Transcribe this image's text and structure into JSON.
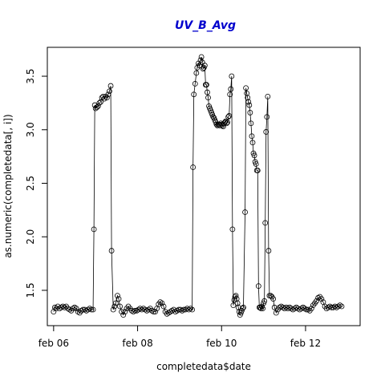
{
  "chart_data": {
    "type": "scatter",
    "title": "UV_B_Avg",
    "xlabel": "completedata$date",
    "ylabel": "as.numeric(completedata[, i])",
    "xlim": [
      5.85,
      13.3
    ],
    "ylim": [
      1.17,
      3.77
    ],
    "x_ticks": [
      {
        "value": 6,
        "label": "feb 06"
      },
      {
        "value": 8,
        "label": "feb 08"
      },
      {
        "value": 10,
        "label": "feb 10"
      },
      {
        "value": 12,
        "label": "feb 12"
      }
    ],
    "y_ticks": [
      {
        "value": 1.5,
        "label": "1.5"
      },
      {
        "value": 2.0,
        "label": "2.0"
      },
      {
        "value": 2.5,
        "label": "2.5"
      },
      {
        "value": 3.0,
        "label": "3.0"
      },
      {
        "value": 3.5,
        "label": "3.5"
      }
    ],
    "grid": false,
    "marker": "open-circle",
    "series": [
      {
        "line": true,
        "points": [
          [
            6.0,
            1.3
          ],
          [
            6.03,
            1.34
          ],
          [
            6.06,
            1.33
          ],
          [
            6.1,
            1.35
          ],
          [
            6.14,
            1.33
          ],
          [
            6.18,
            1.34
          ],
          [
            6.22,
            1.35
          ],
          [
            6.26,
            1.34
          ],
          [
            6.3,
            1.35
          ],
          [
            6.34,
            1.33
          ],
          [
            6.38,
            1.32
          ],
          [
            6.42,
            1.31
          ],
          [
            6.46,
            1.33
          ],
          [
            6.5,
            1.34
          ],
          [
            6.54,
            1.33
          ],
          [
            6.58,
            1.3
          ],
          [
            6.62,
            1.29
          ],
          [
            6.66,
            1.31
          ],
          [
            6.7,
            1.32
          ],
          [
            6.74,
            1.32
          ],
          [
            6.78,
            1.31
          ],
          [
            6.82,
            1.32
          ],
          [
            6.86,
            1.33
          ],
          [
            6.9,
            1.32
          ],
          [
            6.94,
            1.32
          ],
          [
            6.96,
            2.07
          ],
          [
            6.98,
            3.23
          ],
          [
            7.0,
            3.2
          ],
          [
            7.03,
            3.21
          ],
          [
            7.06,
            3.22
          ],
          [
            7.09,
            3.25
          ],
          [
            7.12,
            3.26
          ],
          [
            7.15,
            3.3
          ],
          [
            7.18,
            3.31
          ],
          [
            7.21,
            3.29
          ],
          [
            7.24,
            3.31
          ],
          [
            7.27,
            3.3
          ],
          [
            7.3,
            3.33
          ],
          [
            7.33,
            3.36
          ],
          [
            7.36,
            3.41
          ],
          [
            7.38,
            1.87
          ],
          [
            7.42,
            1.32
          ],
          [
            7.45,
            1.35
          ],
          [
            7.48,
            1.38
          ],
          [
            7.52,
            1.45
          ],
          [
            7.55,
            1.42
          ],
          [
            7.58,
            1.35
          ],
          [
            7.62,
            1.3
          ],
          [
            7.66,
            1.27
          ],
          [
            7.7,
            1.3
          ],
          [
            7.74,
            1.33
          ],
          [
            7.78,
            1.35
          ],
          [
            7.82,
            1.33
          ],
          [
            7.86,
            1.31
          ],
          [
            7.9,
            1.3
          ],
          [
            7.94,
            1.31
          ],
          [
            7.98,
            1.31
          ],
          [
            8.02,
            1.32
          ],
          [
            8.06,
            1.33
          ],
          [
            8.1,
            1.32
          ],
          [
            8.14,
            1.33
          ],
          [
            8.18,
            1.32
          ],
          [
            8.22,
            1.31
          ],
          [
            8.26,
            1.32
          ],
          [
            8.3,
            1.33
          ],
          [
            8.34,
            1.31
          ],
          [
            8.38,
            1.3
          ],
          [
            8.42,
            1.3
          ],
          [
            8.46,
            1.33
          ],
          [
            8.5,
            1.37
          ],
          [
            8.54,
            1.39
          ],
          [
            8.58,
            1.38
          ],
          [
            8.62,
            1.35
          ],
          [
            8.66,
            1.3
          ],
          [
            8.7,
            1.28
          ],
          [
            8.74,
            1.29
          ],
          [
            8.78,
            1.3
          ],
          [
            8.82,
            1.31
          ],
          [
            8.86,
            1.32
          ],
          [
            8.9,
            1.3
          ],
          [
            8.94,
            1.31
          ],
          [
            8.98,
            1.32
          ],
          [
            9.02,
            1.32
          ],
          [
            9.06,
            1.31
          ],
          [
            9.1,
            1.32
          ],
          [
            9.14,
            1.32
          ],
          [
            9.18,
            1.33
          ],
          [
            9.22,
            1.32
          ],
          [
            9.26,
            1.33
          ],
          [
            9.3,
            1.32
          ],
          [
            9.32,
            2.65
          ],
          [
            9.34,
            3.33
          ],
          [
            9.37,
            3.43
          ],
          [
            9.4,
            3.53
          ],
          [
            9.42,
            3.58
          ],
          [
            9.45,
            3.62
          ],
          [
            9.47,
            3.6
          ],
          [
            9.5,
            3.65
          ],
          [
            9.52,
            3.68
          ],
          [
            9.54,
            3.63
          ],
          [
            9.56,
            3.57
          ],
          [
            9.58,
            3.58
          ],
          [
            9.6,
            3.6
          ],
          [
            9.62,
            3.42
          ],
          [
            9.64,
            3.42
          ],
          [
            9.66,
            3.35
          ],
          [
            9.68,
            3.3
          ],
          [
            9.7,
            3.22
          ],
          [
            9.72,
            3.2
          ],
          [
            9.74,
            3.18
          ],
          [
            9.76,
            3.16
          ],
          [
            9.78,
            3.14
          ],
          [
            9.8,
            3.12
          ],
          [
            9.82,
            3.11
          ],
          [
            9.84,
            3.09
          ],
          [
            9.86,
            3.07
          ],
          [
            9.88,
            3.05
          ],
          [
            9.9,
            3.04
          ],
          [
            9.92,
            3.05
          ],
          [
            9.94,
            3.05
          ],
          [
            9.96,
            3.04
          ],
          [
            9.98,
            3.06
          ],
          [
            10.0,
            3.05
          ],
          [
            10.02,
            3.04
          ],
          [
            10.04,
            3.03
          ],
          [
            10.06,
            3.06
          ],
          [
            10.08,
            3.07
          ],
          [
            10.1,
            3.08
          ],
          [
            10.12,
            3.06
          ],
          [
            10.14,
            3.07
          ],
          [
            10.16,
            3.12
          ],
          [
            10.18,
            3.13
          ],
          [
            10.2,
            3.33
          ],
          [
            10.22,
            3.38
          ],
          [
            10.24,
            3.5
          ],
          [
            10.26,
            2.07
          ],
          [
            10.28,
            1.36
          ],
          [
            10.3,
            1.41
          ],
          [
            10.32,
            1.44
          ],
          [
            10.34,
            1.45
          ],
          [
            10.36,
            1.42
          ],
          [
            10.38,
            1.38
          ],
          [
            10.4,
            1.34
          ],
          [
            10.42,
            1.3
          ],
          [
            10.44,
            1.27
          ],
          [
            10.46,
            1.29
          ],
          [
            10.48,
            1.31
          ],
          [
            10.5,
            1.33
          ],
          [
            10.52,
            1.34
          ],
          [
            10.56,
            2.23
          ],
          [
            10.58,
            3.39
          ],
          [
            10.6,
            3.34
          ],
          [
            10.62,
            3.3
          ],
          [
            10.64,
            3.26
          ],
          [
            10.66,
            3.23
          ],
          [
            10.68,
            3.16
          ],
          [
            10.7,
            3.06
          ],
          [
            10.72,
            2.94
          ],
          [
            10.74,
            2.88
          ],
          [
            10.76,
            2.78
          ],
          [
            10.78,
            2.76
          ],
          [
            10.8,
            2.7
          ],
          [
            10.82,
            2.68
          ],
          [
            10.84,
            2.62
          ],
          [
            10.86,
            2.62
          ],
          [
            10.88,
            1.54
          ],
          [
            10.9,
            1.34
          ],
          [
            10.92,
            1.34
          ],
          [
            10.94,
            1.33
          ],
          [
            10.96,
            1.35
          ],
          [
            10.98,
            1.33
          ],
          [
            11.0,
            1.38
          ],
          [
            11.02,
            1.4
          ],
          [
            11.04,
            2.13
          ],
          [
            11.06,
            2.98
          ],
          [
            11.08,
            3.12
          ],
          [
            11.1,
            3.31
          ],
          [
            11.12,
            1.87
          ],
          [
            11.14,
            1.45
          ],
          [
            11.17,
            1.45
          ],
          [
            11.2,
            1.44
          ],
          [
            11.23,
            1.42
          ],
          [
            11.26,
            1.34
          ],
          [
            11.3,
            1.29
          ],
          [
            11.34,
            1.32
          ],
          [
            11.38,
            1.34
          ],
          [
            11.42,
            1.35
          ],
          [
            11.46,
            1.34
          ],
          [
            11.5,
            1.33
          ],
          [
            11.54,
            1.34
          ],
          [
            11.58,
            1.33
          ],
          [
            11.62,
            1.34
          ],
          [
            11.66,
            1.33
          ],
          [
            11.7,
            1.32
          ],
          [
            11.74,
            1.33
          ],
          [
            11.78,
            1.34
          ],
          [
            11.82,
            1.33
          ],
          [
            11.86,
            1.32
          ],
          [
            11.9,
            1.33
          ],
          [
            11.94,
            1.34
          ],
          [
            11.98,
            1.33
          ],
          [
            12.02,
            1.32
          ],
          [
            12.06,
            1.32
          ],
          [
            12.1,
            1.31
          ],
          [
            12.14,
            1.33
          ],
          [
            12.18,
            1.36
          ],
          [
            12.22,
            1.38
          ],
          [
            12.26,
            1.4
          ],
          [
            12.3,
            1.43
          ],
          [
            12.34,
            1.44
          ],
          [
            12.38,
            1.42
          ],
          [
            12.42,
            1.39
          ],
          [
            12.46,
            1.35
          ],
          [
            12.5,
            1.33
          ],
          [
            12.54,
            1.34
          ],
          [
            12.58,
            1.35
          ],
          [
            12.62,
            1.34
          ],
          [
            12.66,
            1.34
          ],
          [
            12.7,
            1.35
          ],
          [
            12.74,
            1.34
          ],
          [
            12.78,
            1.35
          ],
          [
            12.82,
            1.36
          ],
          [
            12.86,
            1.35
          ]
        ]
      }
    ]
  }
}
